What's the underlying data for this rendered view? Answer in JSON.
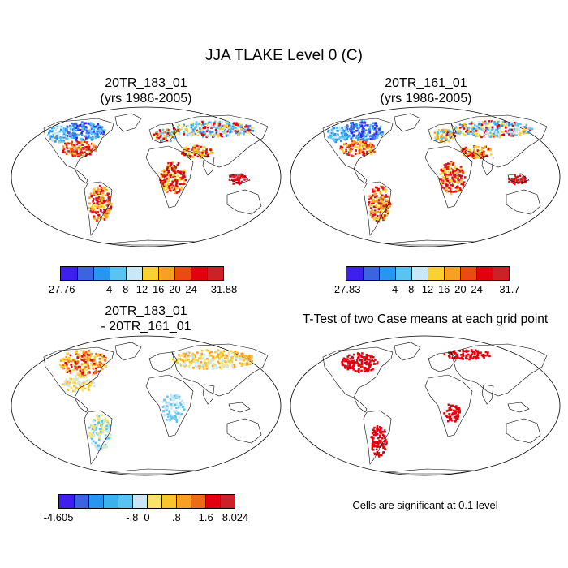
{
  "figure": {
    "title": "JJA TLAKE Level 0 (C)"
  },
  "panels": [
    {
      "id": "top-left",
      "title_line1": "20TR_183_01",
      "title_line2": "(yrs 1986-2005)",
      "colorbar": {
        "colors": [
          "#3e1ff0",
          "#3c63e0",
          "#2a95ee",
          "#5bc3ef",
          "#c9e7f6",
          "#f9d232",
          "#f6a124",
          "#ec4a14",
          "#e3000f",
          "#cd2027"
        ],
        "labels": [
          "-27.76",
          "4",
          "8",
          "12",
          "16",
          "20",
          "24",
          "31.88"
        ],
        "label_positions": [
          0,
          3,
          4,
          5,
          6,
          7,
          8,
          10
        ]
      }
    },
    {
      "id": "top-right",
      "title_line1": "20TR_161_01",
      "title_line2": "(yrs 1986-2005)",
      "colorbar": {
        "colors": [
          "#3e1ff0",
          "#3c63e0",
          "#2a95ee",
          "#5bc3ef",
          "#c9e7f6",
          "#f9d232",
          "#f6a124",
          "#ec4a14",
          "#e3000f",
          "#cd2027"
        ],
        "labels": [
          "-27.83",
          "4",
          "8",
          "12",
          "16",
          "20",
          "24",
          "31.7"
        ],
        "label_positions": [
          0,
          3,
          4,
          5,
          6,
          7,
          8,
          10
        ]
      }
    },
    {
      "id": "bottom-left",
      "title_line1": "20TR_183_01",
      "title_line2": "- 20TR_161_01",
      "colorbar": {
        "colors": [
          "#3e1ff0",
          "#3c63e0",
          "#2a95ee",
          "#3cb1ec",
          "#5bc3ef",
          "#c9e7f6",
          "#fbe36a",
          "#f9c52a",
          "#f6a124",
          "#ec6a1a",
          "#e3000f",
          "#cd2027"
        ],
        "labels": [
          "-4.605",
          "-.8",
          "0",
          ".8",
          "1.6",
          "8.024"
        ],
        "label_positions": [
          0,
          5,
          6,
          8,
          10,
          12
        ]
      }
    },
    {
      "id": "bottom-right",
      "title_line1": "T-Test of two Case means at each grid point",
      "note": "Cells are significant at 0.1 level"
    }
  ]
}
